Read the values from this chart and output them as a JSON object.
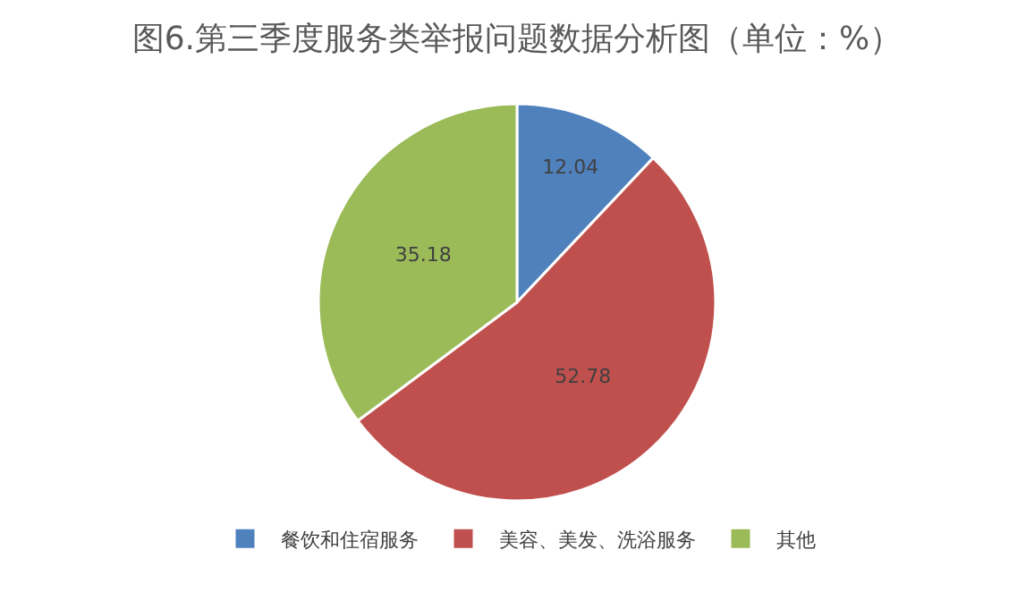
{
  "chart_data": {
    "type": "pie",
    "title": "图6.第三季度服务类举报问题数据分析图（单位：%）",
    "categories": [
      "餐饮和住宿服务",
      "美容、美发、洗浴服务",
      "其他"
    ],
    "values": [
      12.04,
      52.78,
      35.18
    ],
    "colors": [
      "#4f81bd",
      "#c0504d",
      "#9bbb59"
    ],
    "data_labels": true,
    "legend": "bottom"
  }
}
